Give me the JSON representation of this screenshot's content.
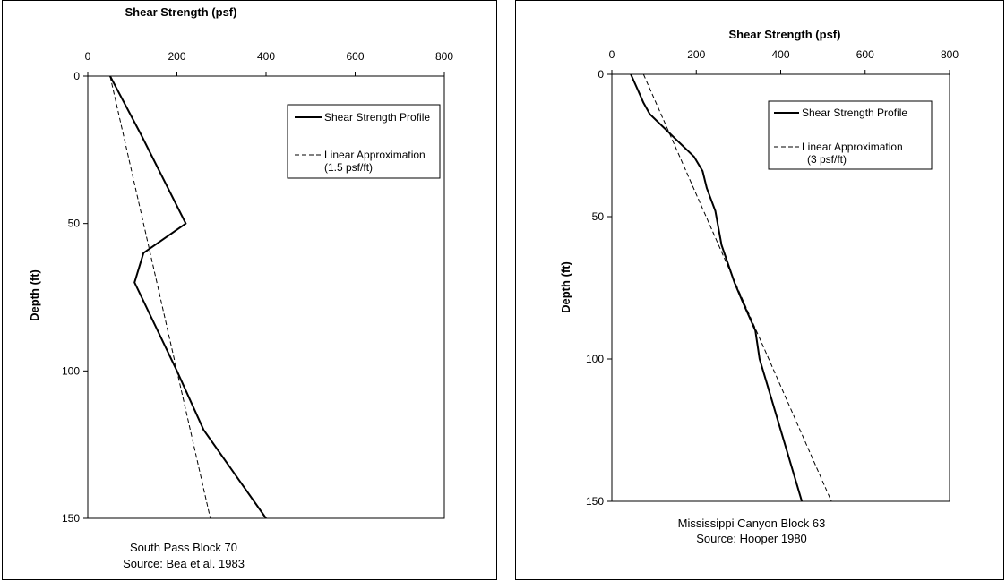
{
  "charts": [
    {
      "chart_data": {
        "type": "line",
        "xlabel": "Shear Strength (psf)",
        "ylabel": "Depth (ft)",
        "xlim": [
          0,
          800
        ],
        "ylim": [
          0,
          150
        ],
        "y_inverted": true,
        "x_axis_position": "top",
        "xticks": [
          "0",
          "200",
          "400",
          "600",
          "800"
        ],
        "yticks": [
          "0",
          "50",
          "100",
          "150"
        ],
        "grid": false,
        "legend_position": "top-right",
        "series": [
          {
            "name": "Shear Strength Profile",
            "style": "solid",
            "points": [
              [
                50,
                0
              ],
              [
                120,
                20
              ],
              [
                220,
                50
              ],
              [
                125,
                60
              ],
              [
                105,
                70
              ],
              [
                200,
                100
              ],
              [
                260,
                120
              ],
              [
                400,
                150
              ]
            ]
          },
          {
            "name": "Linear Approximation",
            "style": "dashed",
            "points": [
              [
                50,
                0
              ],
              [
                275,
                150
              ]
            ]
          }
        ],
        "legend_note": "(1.5 psf/ft)",
        "caption_line1": "South Pass Block 70",
        "caption_line2": "Source: Bea et al. 1983"
      }
    },
    {
      "chart_data": {
        "type": "line",
        "xlabel": "Shear Strength (psf)",
        "ylabel": "Depth (ft)",
        "xlim": [
          0,
          800
        ],
        "ylim": [
          0,
          150
        ],
        "y_inverted": true,
        "x_axis_position": "top",
        "xticks": [
          "0",
          "200",
          "400",
          "600",
          "800"
        ],
        "yticks": [
          "0",
          "50",
          "100",
          "150"
        ],
        "grid": false,
        "legend_position": "top-right",
        "series": [
          {
            "name": "Shear Strength Profile",
            "style": "solid",
            "points": [
              [
                45,
                0
              ],
              [
                60,
                5
              ],
              [
                75,
                10
              ],
              [
                90,
                14
              ],
              [
                195,
                29
              ],
              [
                215,
                34
              ],
              [
                225,
                40
              ],
              [
                245,
                48
              ],
              [
                260,
                60
              ],
              [
                290,
                73
              ],
              [
                310,
                80
              ],
              [
                340,
                90
              ],
              [
                350,
                100
              ],
              [
                370,
                110
              ],
              [
                450,
                150
              ]
            ]
          },
          {
            "name": "Linear Approximation",
            "style": "dashed",
            "points": [
              [
                75,
                0
              ],
              [
                520,
                150
              ]
            ]
          }
        ],
        "legend_note": "(3 psf/ft)",
        "caption_line1": "Mississippi Canyon Block 63",
        "caption_line2": "Source: Hooper 1980"
      }
    }
  ]
}
